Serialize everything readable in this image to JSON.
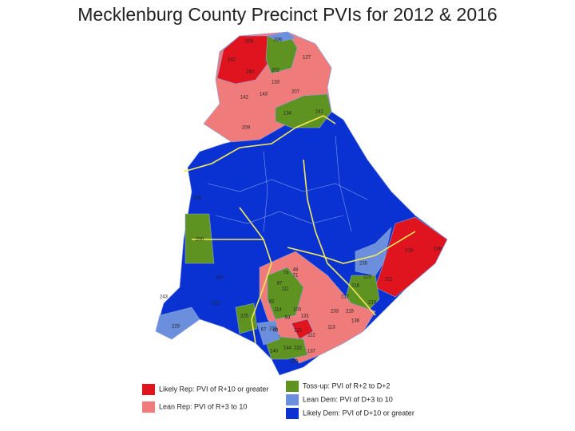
{
  "title": "Mecklenburg County Precinct PVIs for 2012 & 2016",
  "legend": [
    {
      "label": "Likely Rep: PVI of R+10 or greater",
      "color": "#e0141e"
    },
    {
      "label": "Lean Rep: PVI of R+3 to 10",
      "color": "#ef7b7b"
    },
    {
      "label": "Toss-up: PVI of R+2 to D+2",
      "color": "#5f9321"
    },
    {
      "label": "Lean Dem: PVI of D+3 to 10",
      "color": "#6b8fdc"
    },
    {
      "label": "Likely Dem: PVI of D+10 or greater",
      "color": "#0a32d2"
    }
  ],
  "precincts": [
    "208",
    "206",
    "242",
    "202",
    "127",
    "240",
    "133",
    "142",
    "143",
    "207",
    "134",
    "241",
    "209",
    "200",
    "224",
    "238",
    "219",
    "235",
    "220",
    "221",
    "218",
    "229",
    "243",
    "122",
    "225",
    "140",
    "144",
    "232",
    "137",
    "139",
    "121",
    "215",
    "233",
    "136",
    "113",
    "112",
    "147",
    "217",
    "216",
    "131",
    "100",
    "114",
    "92",
    "93",
    "111",
    "87",
    "71",
    "74",
    "48",
    "226",
    "67",
    "68"
  ]
}
